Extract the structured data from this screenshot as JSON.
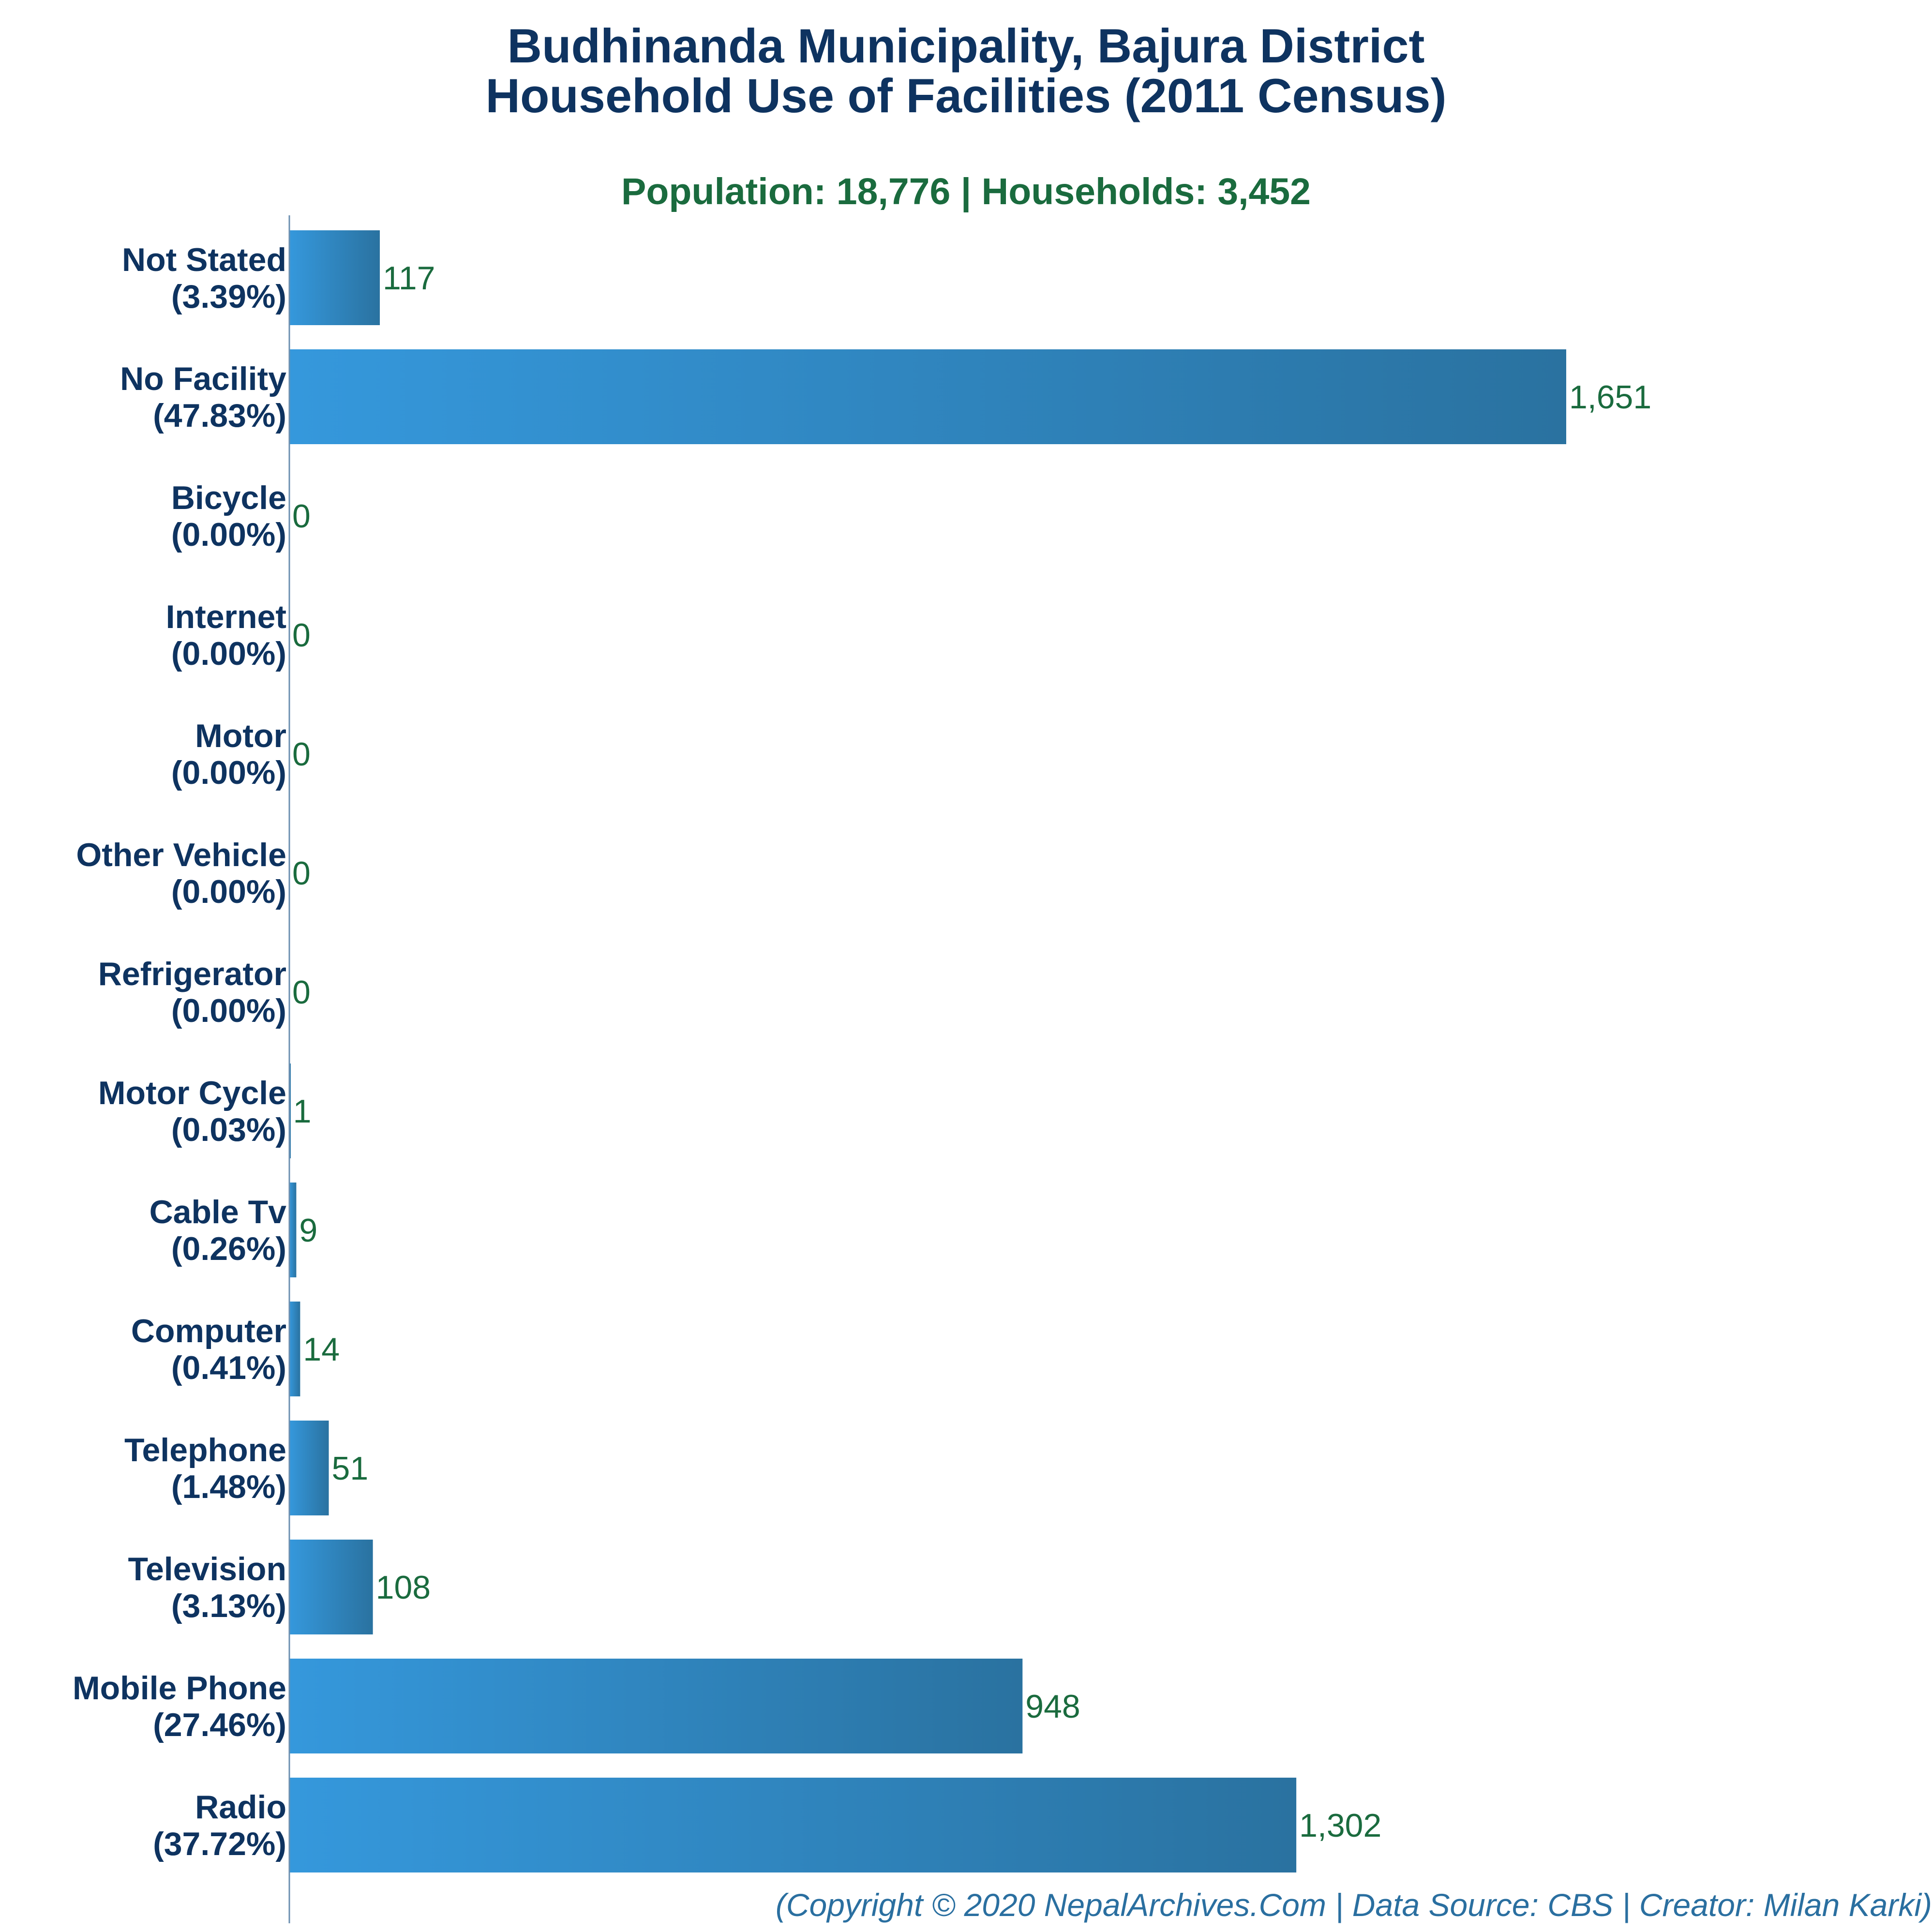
{
  "colors": {
    "title": "#0e3360",
    "subtitle": "#1a6b3e",
    "category_label": "#0e3360",
    "value_label": "#1a6b3e",
    "bar_light": "#3598dc",
    "bar_dark": "#2a72a0",
    "footer": "#2a6fa0",
    "axis": "#6b8fb0"
  },
  "chart_data": {
    "type": "bar",
    "orientation": "horizontal",
    "title_line1": "Budhinanda Municipality, Bajura District",
    "title_line2": "Household Use of Facilities (2011 Census)",
    "subtitle": "Population: 18,776 | Households: 3,452",
    "footer": "(Copyright © 2020 NepalArchives.Com | Data Source: CBS | Creator: Milan Karki)",
    "categories": [
      "Not Stated",
      "No Facility",
      "Bicycle",
      "Internet",
      "Motor",
      "Other Vehicle",
      "Refrigerator",
      "Motor Cycle",
      "Cable Tv",
      "Computer",
      "Telephone",
      "Television",
      "Mobile Phone",
      "Radio"
    ],
    "percent_labels": [
      "(3.39%)",
      "(47.83%)",
      "(0.00%)",
      "(0.00%)",
      "(0.00%)",
      "(0.00%)",
      "(0.00%)",
      "(0.03%)",
      "(0.26%)",
      "(0.41%)",
      "(1.48%)",
      "(3.13%)",
      "(27.46%)",
      "(37.72%)"
    ],
    "values": [
      117,
      1651,
      0,
      0,
      0,
      0,
      0,
      1,
      9,
      14,
      51,
      108,
      948,
      1302
    ],
    "value_labels": [
      "117",
      "1,651",
      "0",
      "0",
      "0",
      "0",
      "0",
      "1",
      "9",
      "14",
      "51",
      "108",
      "948",
      "1,302"
    ],
    "xlim": [
      0,
      1651
    ],
    "grid": false,
    "legend": "none"
  }
}
